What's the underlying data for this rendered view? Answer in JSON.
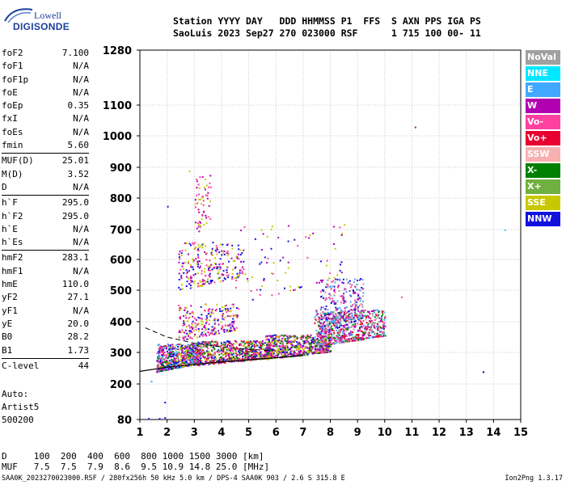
{
  "logo": {
    "line1": "Lowell",
    "line2": "DIGISONDE"
  },
  "header": {
    "labels_line": "Station YYYY DAY   DDD HHMMSS P1  FFS  S AXN PPS IGA PS",
    "values_line": "SaoLuis 2023 Sep27 270 023000 RSF      1 715 100 00- 11"
  },
  "parameters": [
    [
      {
        "name": "foF2",
        "value": "7.100"
      },
      {
        "name": "foF1",
        "value": "N/A"
      },
      {
        "name": "foF1p",
        "value": "N/A"
      },
      {
        "name": "foE",
        "value": "N/A"
      },
      {
        "name": "foEp",
        "value": "0.35"
      },
      {
        "name": "fxI",
        "value": "N/A"
      },
      {
        "name": "foEs",
        "value": "N/A"
      },
      {
        "name": "fmin",
        "value": "5.60"
      }
    ],
    [
      {
        "name": "MUF(D)",
        "value": "25.01"
      },
      {
        "name": "M(D)",
        "value": "3.52"
      },
      {
        "name": "D",
        "value": "N/A"
      }
    ],
    [
      {
        "name": "h`F",
        "value": "295.0"
      },
      {
        "name": "h`F2",
        "value": "295.0"
      },
      {
        "name": "h`E",
        "value": "N/A"
      },
      {
        "name": "h`Es",
        "value": "N/A"
      }
    ],
    [
      {
        "name": "hmF2",
        "value": "283.1"
      },
      {
        "name": "hmF1",
        "value": "N/A"
      },
      {
        "name": "hmE",
        "value": "110.0"
      },
      {
        "name": "yF2",
        "value": "27.1"
      },
      {
        "name": "yF1",
        "value": "N/A"
      },
      {
        "name": "yE",
        "value": "20.0"
      },
      {
        "name": "B0",
        "value": "28.2"
      },
      {
        "name": "B1",
        "value": "1.73"
      }
    ],
    [
      {
        "name": "C-level",
        "value": "44"
      }
    ]
  ],
  "autoscale": {
    "line1": "Auto:",
    "line2": "Artist5",
    "line3": "500200"
  },
  "legend": [
    {
      "label": "NoVal",
      "color": "#a0a0a0"
    },
    {
      "label": "NNE",
      "color": "#00e8ff"
    },
    {
      "label": "E",
      "color": "#40a8ff"
    },
    {
      "label": "W",
      "color": "#b000b0"
    },
    {
      "label": "Vo-",
      "color": "#ff40a0"
    },
    {
      "label": "Vo+",
      "color": "#e80030"
    },
    {
      "label": "SSW",
      "color": "#f8b0b0"
    },
    {
      "label": "X-",
      "color": "#008000"
    },
    {
      "label": "X+",
      "color": "#70b040"
    },
    {
      "label": "SSE",
      "color": "#c8c800"
    },
    {
      "label": "NNW",
      "color": "#1010e0"
    }
  ],
  "chart_data": {
    "type": "scatter",
    "x_ticks": [
      "1",
      "2",
      "3",
      "4",
      "5",
      "6",
      "7",
      "8",
      "9",
      "10",
      "11",
      "12",
      "13",
      "14",
      "15"
    ],
    "y_ticks": [
      {
        "v": 80,
        "t": "80"
      },
      {
        "v": 200,
        "t": "200"
      },
      {
        "v": 300,
        "t": "300"
      },
      {
        "v": 400,
        "t": "400"
      },
      {
        "v": 500,
        "t": "500"
      },
      {
        "v": 600,
        "t": "600"
      },
      {
        "v": 700,
        "t": "700"
      },
      {
        "v": 800,
        "t": "800"
      },
      {
        "v": 900,
        "t": "900"
      },
      {
        "v": 1000,
        "t": "1000"
      },
      {
        "v": 1100,
        "t": "1100"
      },
      {
        "v": 1280,
        "t": "1280"
      }
    ],
    "xlim": [
      1,
      15
    ],
    "ylim": [
      80,
      1280
    ],
    "y_scale": "ionogram-virtual-height",
    "grid": true,
    "trace_curve": [
      [
        1.0,
        240
      ],
      [
        2.0,
        253
      ],
      [
        3.0,
        262
      ],
      [
        4.0,
        270
      ],
      [
        5.0,
        277
      ],
      [
        6.0,
        283
      ],
      [
        7.0,
        290
      ]
    ],
    "dashed_curve": [
      [
        1.2,
        380
      ],
      [
        2.0,
        350
      ],
      [
        3.0,
        330
      ],
      [
        4.0,
        318
      ],
      [
        5.0,
        310
      ],
      [
        6.0,
        305
      ]
    ],
    "echo_regions": [
      {
        "x": [
          1.6,
          3.2
        ],
        "y": [
          240,
          330
        ],
        "n": 700,
        "colors": [
          "#1010e0",
          "#b000b0",
          "#ff40a0",
          "#c8c800",
          "#40a8ff",
          "#008000"
        ]
      },
      {
        "x": [
          3.0,
          5.8
        ],
        "y": [
          260,
          340
        ],
        "n": 700,
        "colors": [
          "#1010e0",
          "#b000b0",
          "#ff40a0",
          "#c8c800",
          "#70b040",
          "#008000",
          "#e80030"
        ]
      },
      {
        "x": [
          5.6,
          8.0
        ],
        "y": [
          280,
          360
        ],
        "n": 650,
        "colors": [
          "#ff40a0",
          "#b000b0",
          "#1010e0",
          "#c8c800",
          "#008000"
        ]
      },
      {
        "x": [
          7.4,
          10.0
        ],
        "y": [
          320,
          440
        ],
        "n": 650,
        "colors": [
          "#ff40a0",
          "#b000b0",
          "#e80030",
          "#40a8ff",
          "#a0a0a0",
          "#008000"
        ]
      },
      {
        "x": [
          7.6,
          9.2
        ],
        "y": [
          360,
          540
        ],
        "n": 300,
        "colors": [
          "#a0a0a0",
          "#b000b0",
          "#40a8ff",
          "#1010e0",
          "#ff40a0"
        ]
      },
      {
        "x": [
          2.4,
          4.6
        ],
        "y": [
          340,
          460
        ],
        "n": 250,
        "colors": [
          "#b000b0",
          "#1010e0",
          "#c8c800",
          "#ff40a0"
        ]
      },
      {
        "x": [
          2.4,
          4.8
        ],
        "y": [
          500,
          660
        ],
        "n": 260,
        "colors": [
          "#b000b0",
          "#1010e0",
          "#ff40a0",
          "#c8c800"
        ]
      },
      {
        "x": [
          3.0,
          3.6
        ],
        "y": [
          680,
          880
        ],
        "n": 60,
        "colors": [
          "#b000b0",
          "#ff40a0",
          "#c8c800"
        ]
      },
      {
        "x": [
          4.5,
          8.5
        ],
        "y": [
          460,
          720
        ],
        "n": 80,
        "colors": [
          "#b000b0",
          "#ff40a0",
          "#1010e0",
          "#c8c800"
        ]
      }
    ],
    "isolated_points": [
      [
        11.1,
        1030,
        "#b000b0"
      ],
      [
        13.6,
        240,
        "#000080"
      ],
      [
        14.4,
        700,
        "#00e8ff"
      ],
      [
        1.9,
        140,
        "#1010e0"
      ],
      [
        1.3,
        85,
        "#1010e0"
      ],
      [
        1.7,
        85,
        "#1010e0"
      ],
      [
        1.9,
        88,
        "#1010e0"
      ],
      [
        1.4,
        210,
        "#40a8ff"
      ],
      [
        2.0,
        775,
        "#1010e0"
      ],
      [
        2.8,
        890,
        "#c8c800"
      ],
      [
        10.6,
        480,
        "#ff40a0"
      ]
    ]
  },
  "footer": {
    "line1": "D     100  200  400  600  800 1000 1500 3000 [km]",
    "line2": "MUF   7.5  7.5  7.9  8.6  9.5 10.9 14.8 25.0 [MHz]",
    "file_info": "SAA0K_2023270023000.RSF / 280fx256h 50 kHz 5.0 km / DPS-4 SAA0K 903 / 2.6 S 315.8 E",
    "version": "Ion2Png 1.3.17"
  }
}
